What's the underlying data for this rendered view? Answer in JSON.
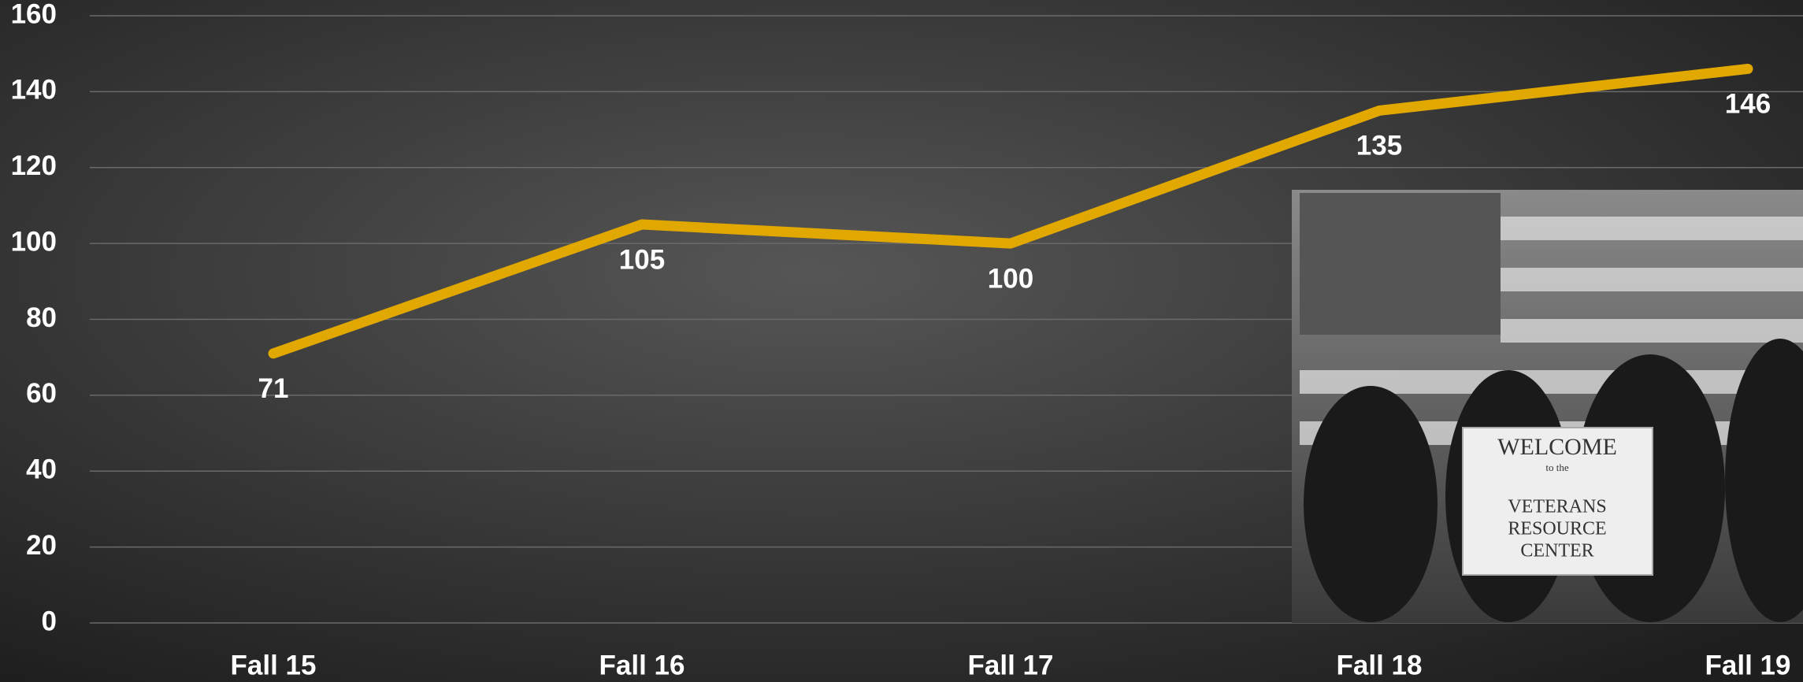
{
  "chart_data": {
    "type": "line",
    "categories": [
      "Fall 15",
      "Fall 16",
      "Fall 17",
      "Fall 18",
      "Fall 19"
    ],
    "series": [
      {
        "name": null,
        "color": "#e0a800",
        "values": [
          71,
          105,
          100,
          135,
          146
        ]
      }
    ],
    "ylim": [
      0,
      160
    ],
    "yticks": [
      0,
      20,
      40,
      60,
      80,
      100,
      120,
      140,
      160
    ],
    "grid": true,
    "photo_sign": [
      "WELCOME",
      "to the",
      "VETERANS",
      "RESOURCE",
      "CENTER"
    ]
  }
}
